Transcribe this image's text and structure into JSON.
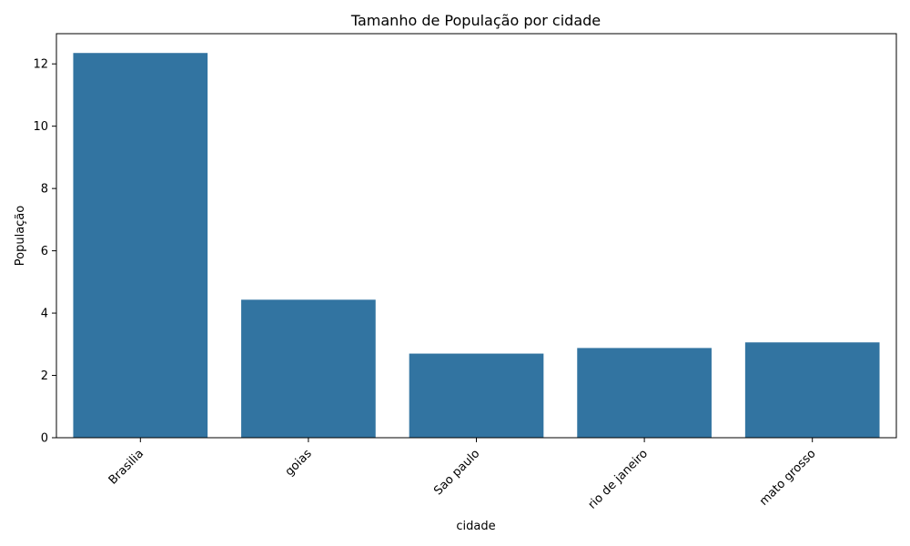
{
  "chart_data": {
    "type": "bar",
    "title": "Tamanho de População por cidade",
    "xlabel": "cidade",
    "ylabel": "População",
    "categories": [
      "Brasilia",
      "goias",
      "Sao paulo",
      "rio de janeiro",
      "mato grosso"
    ],
    "values": [
      12.35,
      4.43,
      2.7,
      2.88,
      3.06
    ],
    "ylim": [
      0,
      12.97
    ],
    "yticks": [
      0,
      2,
      4,
      6,
      8,
      10,
      12
    ],
    "grid": false,
    "bar_color": "#3274a1"
  }
}
